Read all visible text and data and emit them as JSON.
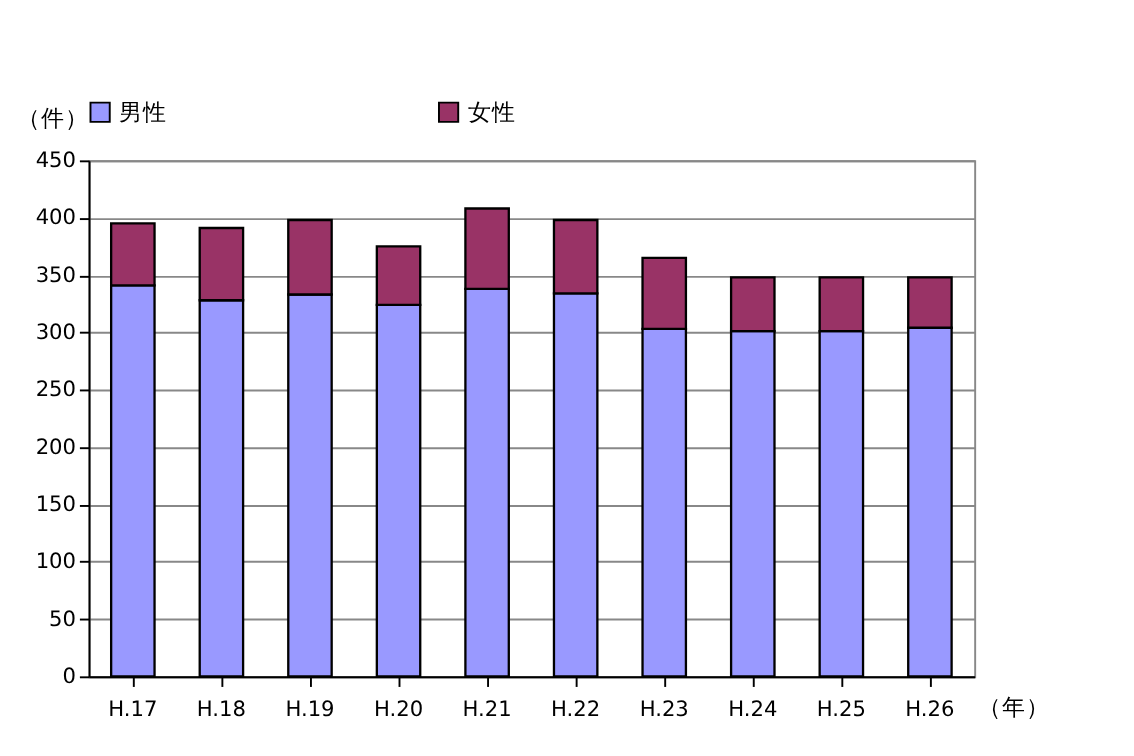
{
  "chart_data": {
    "type": "bar",
    "stacked": true,
    "ylabel": "（件）",
    "xlabel": "（年）",
    "categories": [
      "H.17",
      "H.18",
      "H.19",
      "H.20",
      "H.21",
      "H.22",
      "H.23",
      "H.24",
      "H.25",
      "H.26"
    ],
    "series": [
      {
        "name": "男性",
        "color": "#9999ff",
        "values": [
          341,
          328,
          333,
          324,
          338,
          334,
          303,
          301,
          301,
          304
        ]
      },
      {
        "name": "女性",
        "color": "#993366",
        "values": [
          54,
          63,
          65,
          51,
          70,
          64,
          62,
          47,
          47,
          44
        ]
      }
    ],
    "ylim": [
      0,
      450
    ],
    "yticks": [
      0,
      50,
      100,
      150,
      200,
      250,
      300,
      350,
      400,
      450
    ],
    "grid": "y",
    "legend": "top"
  }
}
